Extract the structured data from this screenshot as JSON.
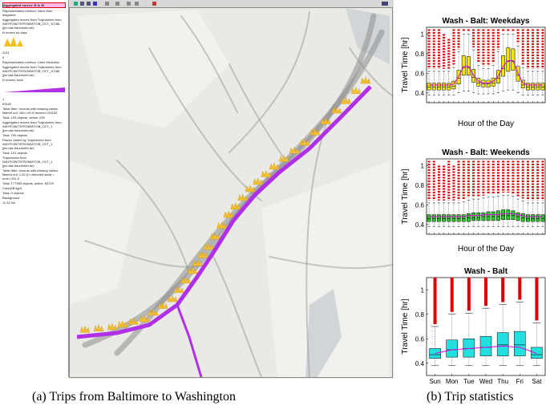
{
  "map_panel": {
    "layers": [
      {
        "title": "Aggregated moves: B to W"
      },
      {
        "text": "Representation method: Value flow diagrams"
      },
      {
        "text": "Aggregated moves from Trajectories from WAYPOINTSFROMWTOB_OCT_10788 (jim.iais.fraunhofer.de)"
      },
      {
        "text": "N moves by days"
      },
      {
        "text": "1141"
      },
      {
        "text": "0"
      },
      {
        "text": "Representation method: Lines thickness"
      },
      {
        "text": "Aggregated moves from Trajectories from WAYPOINTSFROMWTOB_OCT_10788 (jim.iais.fraunhofer.de)"
      },
      {
        "text": "N moves, total"
      },
      {
        "text": "1"
      },
      {
        "text": "53152"
      },
      {
        "text": "Table filter: records with missing values filtered out; 180>=N of moves>=53152"
      },
      {
        "text": "Total: 193 objects, active: 239"
      },
      {
        "text": "Aggregated moves from Trajectories from WAYPOINTSFROMWTOB_OCT_1 (jim.iais.fraunhofer.de)"
      },
      {
        "text": "Total: 799 objects"
      },
      {
        "text": "Places visited by Trajectories from WAYPOINTSFROMWTOB_OCT_1 (jim.iais.fraunhofer.de)"
      },
      {
        "text": "Total: 191 objects"
      },
      {
        "text": "Trajectories from WAYPOINTSFROMWTOB_OCT_1 (jim.iais.fraunhofer.de)"
      },
      {
        "text": "Table filter: records with missing values filtered out; 1.50 (t>=directed start) = end>=311.0"
      },
      {
        "text": "Total: 177983 objects, active: 84709"
      },
      {
        "text": "CartoDB light"
      },
      {
        "text": "Total: 0 objects"
      },
      {
        "text": "Background"
      },
      {
        "text": "11.32 km"
      }
    ],
    "caption": "(a) Trips from Baltimore to Washington"
  },
  "caption_b": "(b) Trip statistics",
  "chart_data": [
    {
      "type": "box",
      "title": "Wash - Balt: Weekdays",
      "y_label": "Travel Time [hr]",
      "x_label": "Hour of the Day",
      "categories": [
        null,
        null,
        null,
        null,
        null,
        null,
        null,
        null,
        null,
        null,
        null,
        null,
        null,
        null,
        null,
        null,
        null,
        null,
        null,
        null,
        null,
        null,
        null,
        null
      ],
      "whisker_low": [
        0.38,
        0.38,
        0.38,
        0.38,
        0.38,
        0.38,
        0.4,
        0.42,
        0.42,
        0.4,
        0.39,
        0.39,
        0.39,
        0.39,
        0.4,
        0.42,
        0.43,
        0.43,
        0.4,
        0.38,
        0.38,
        0.38,
        0.38,
        0.38
      ],
      "q1": [
        0.43,
        0.43,
        0.43,
        0.43,
        0.43,
        0.44,
        0.49,
        0.58,
        0.58,
        0.51,
        0.47,
        0.46,
        0.46,
        0.47,
        0.5,
        0.57,
        0.62,
        0.63,
        0.52,
        0.45,
        0.43,
        0.43,
        0.43,
        0.43
      ],
      "median": [
        0.46,
        0.46,
        0.46,
        0.46,
        0.46,
        0.47,
        0.55,
        0.66,
        0.66,
        0.56,
        0.5,
        0.49,
        0.49,
        0.5,
        0.55,
        0.65,
        0.72,
        0.72,
        0.58,
        0.48,
        0.46,
        0.46,
        0.46,
        0.46
      ],
      "q3": [
        0.5,
        0.5,
        0.5,
        0.5,
        0.5,
        0.52,
        0.63,
        0.78,
        0.77,
        0.64,
        0.55,
        0.53,
        0.53,
        0.55,
        0.63,
        0.78,
        0.86,
        0.85,
        0.67,
        0.53,
        0.5,
        0.5,
        0.5,
        0.5
      ],
      "whisker_high": [
        0.62,
        0.62,
        0.62,
        0.62,
        0.62,
        0.66,
        0.82,
        1.0,
        1.0,
        0.84,
        0.68,
        0.65,
        0.65,
        0.68,
        0.82,
        1.0,
        1.0,
        1.0,
        0.88,
        0.66,
        0.62,
        0.62,
        0.62,
        0.62
      ],
      "outlier_max": [
        1.05,
        1.05,
        1.05,
        1.0,
        0.95,
        1.05,
        1.05,
        1.05,
        1.05,
        1.05,
        1.05,
        1.05,
        1.05,
        1.05,
        1.05,
        1.05,
        1.05,
        1.05,
        1.05,
        1.05,
        1.05,
        1.05,
        1.05,
        1.05
      ],
      "mean": [
        0.48,
        0.48,
        0.48,
        0.48,
        0.48,
        0.49,
        0.57,
        0.67,
        0.67,
        0.58,
        0.52,
        0.5,
        0.5,
        0.52,
        0.57,
        0.67,
        0.73,
        0.73,
        0.6,
        0.5,
        0.48,
        0.48,
        0.48,
        0.48
      ],
      "box_color": "#f2e600",
      "mean_color": "#e000e0",
      "outlier_color": "#e00000",
      "ylim": [
        0.3,
        1.07
      ],
      "yticks": [
        0.4,
        0.6,
        0.8,
        1
      ]
    },
    {
      "type": "box",
      "title": "Wash - Balt: Weekends",
      "y_label": "Travel Time [hr]",
      "x_label": "Hour of the Day",
      "categories": [
        null,
        null,
        null,
        null,
        null,
        null,
        null,
        null,
        null,
        null,
        null,
        null,
        null,
        null,
        null,
        null,
        null,
        null,
        null,
        null,
        null,
        null,
        null,
        null
      ],
      "whisker_low": [
        0.38,
        0.38,
        0.38,
        0.38,
        0.38,
        0.38,
        0.38,
        0.38,
        0.38,
        0.38,
        0.38,
        0.38,
        0.38,
        0.38,
        0.38,
        0.38,
        0.38,
        0.38,
        0.38,
        0.38,
        0.38,
        0.38,
        0.38,
        0.38
      ],
      "q1": [
        0.43,
        0.43,
        0.43,
        0.43,
        0.43,
        0.43,
        0.43,
        0.43,
        0.43,
        0.44,
        0.44,
        0.44,
        0.44,
        0.44,
        0.44,
        0.45,
        0.45,
        0.45,
        0.44,
        0.43,
        0.43,
        0.43,
        0.43,
        0.43
      ],
      "median": [
        0.46,
        0.46,
        0.46,
        0.46,
        0.46,
        0.46,
        0.46,
        0.46,
        0.47,
        0.47,
        0.47,
        0.48,
        0.48,
        0.48,
        0.48,
        0.49,
        0.49,
        0.49,
        0.48,
        0.47,
        0.46,
        0.46,
        0.46,
        0.46
      ],
      "q3": [
        0.5,
        0.5,
        0.5,
        0.5,
        0.5,
        0.5,
        0.5,
        0.5,
        0.51,
        0.52,
        0.52,
        0.52,
        0.53,
        0.53,
        0.54,
        0.55,
        0.55,
        0.54,
        0.52,
        0.51,
        0.5,
        0.5,
        0.5,
        0.5
      ],
      "whisker_high": [
        0.62,
        0.62,
        0.62,
        0.62,
        0.62,
        0.62,
        0.62,
        0.63,
        0.65,
        0.66,
        0.66,
        0.67,
        0.68,
        0.68,
        0.69,
        0.7,
        0.7,
        0.69,
        0.66,
        0.64,
        0.62,
        0.62,
        0.62,
        0.62
      ],
      "outlier_max": [
        1.05,
        1.05,
        1.0,
        1.0,
        1.05,
        1.0,
        1.05,
        1.05,
        1.05,
        1.05,
        1.05,
        1.05,
        1.05,
        1.05,
        1.05,
        1.05,
        1.05,
        1.05,
        1.05,
        1.05,
        1.05,
        1.05,
        1.05,
        1.05
      ],
      "mean": [
        0.48,
        0.48,
        0.48,
        0.48,
        0.48,
        0.48,
        0.48,
        0.48,
        0.49,
        0.49,
        0.49,
        0.5,
        0.5,
        0.5,
        0.5,
        0.51,
        0.51,
        0.51,
        0.5,
        0.49,
        0.48,
        0.48,
        0.48,
        0.48
      ],
      "box_color": "#22cc22",
      "mean_color": "#e000e0",
      "outlier_color": "#e00000",
      "ylim": [
        0.3,
        1.07
      ],
      "yticks": [
        0.4,
        0.6,
        0.8,
        1
      ]
    },
    {
      "type": "box",
      "title": "Wash - Balt",
      "y_label": "Travel Time [hr]",
      "categories": [
        "Sun",
        "Mon",
        "Tue",
        "Wed",
        "Thu",
        "Fri",
        "Sat"
      ],
      "whisker_low": [
        0.38,
        0.38,
        0.38,
        0.38,
        0.38,
        0.38,
        0.38
      ],
      "q1": [
        0.44,
        0.45,
        0.45,
        0.46,
        0.46,
        0.46,
        0.44
      ],
      "median": [
        0.47,
        0.51,
        0.52,
        0.53,
        0.55,
        0.55,
        0.47
      ],
      "q3": [
        0.52,
        0.59,
        0.6,
        0.62,
        0.65,
        0.66,
        0.53
      ],
      "whisker_high": [
        0.7,
        0.8,
        0.81,
        0.85,
        0.88,
        0.9,
        0.73
      ],
      "outlier_max": [
        1.1,
        1.1,
        1.1,
        1.1,
        1.1,
        1.1,
        1.1
      ],
      "mean": [
        0.48,
        0.51,
        0.52,
        0.53,
        0.54,
        0.53,
        0.48
      ],
      "box_color": "#22e0e0",
      "mean_color": "#e000e0",
      "outlier_color": "#e00000",
      "ylim": [
        0.3,
        1.1
      ],
      "yticks": [
        0.4,
        0.6,
        0.8,
        1
      ]
    }
  ]
}
